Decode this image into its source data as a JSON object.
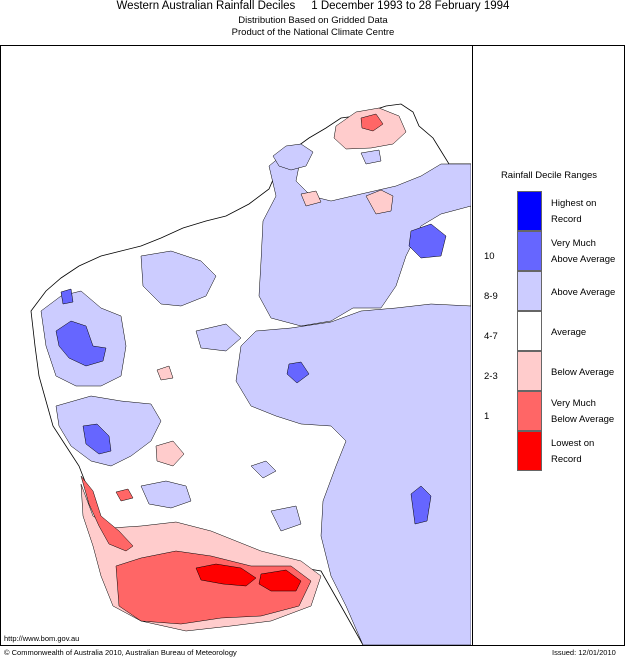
{
  "header": {
    "title": "Western Australian Rainfall Deciles     1 December 1993 to 28 February 1994",
    "subtitle_1": "Distribution Based on Gridded Data",
    "subtitle_2": "Product of the National Climate Centre"
  },
  "legend": {
    "title": "Rainfall Decile Ranges",
    "items": [
      {
        "label_line1": "Highest on",
        "label_line2": "Record",
        "range": "",
        "color": "#0000ff"
      },
      {
        "label_line1": "Very Much",
        "label_line2": "Above Average",
        "range": "10",
        "color": "#6666ff"
      },
      {
        "label_line1": "Above Average",
        "label_line2": "",
        "range": "8-9",
        "color": "#ccccff"
      },
      {
        "label_line1": "Average",
        "label_line2": "",
        "range": "4-7",
        "color": "#ffffff"
      },
      {
        "label_line1": "Below Average",
        "label_line2": "",
        "range": "2-3",
        "color": "#ffcccc"
      },
      {
        "label_line1": "Very Much",
        "label_line2": "Below Average",
        "range": "1",
        "color": "#ff6666"
      },
      {
        "label_line1": "Lowest on",
        "label_line2": "Record",
        "range": "",
        "color": "#ff0000"
      }
    ]
  },
  "footer": {
    "url": "http://www.bom.gov.au",
    "copyright": "© Commonwealth of Australia 2010, Australian Bureau of Meteorology",
    "issued": "Issued: 12/01/2010"
  }
}
